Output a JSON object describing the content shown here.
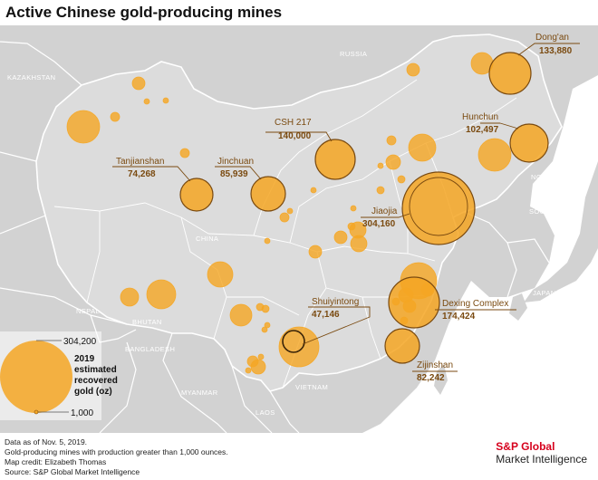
{
  "title": "Active Chinese gold-producing mines",
  "colors": {
    "water": "#ffffff",
    "land": "#d2d2d2",
    "china": "#dcdcdc",
    "bubble_fill": "#f5a623",
    "bubble_outline": "#7a4a10",
    "label": "#7a4a10",
    "country_label": "#ffffff"
  },
  "countries": [
    "RUSSIA",
    "KAZAKHSTAN",
    "CHINA",
    "NEPAL",
    "BHUTAN",
    "BANGLADESH",
    "MYANMAR",
    "LAOS",
    "VIETNAM",
    "NORTH KOREA",
    "SOUTH KOREA",
    "JAPAN"
  ],
  "labeled_mines": [
    {
      "name": "Dong'an",
      "value": "133,880"
    },
    {
      "name": "CSH 217",
      "value": "140,000"
    },
    {
      "name": "Hunchun",
      "value": "102,497"
    },
    {
      "name": "Tanjianshan",
      "value": "74,268"
    },
    {
      "name": "Jinchuan",
      "value": "85,939"
    },
    {
      "name": "Jiaojia",
      "value": "304,160"
    },
    {
      "name": "Shuiyintong",
      "value": "47,146"
    },
    {
      "name": "Dexing Complex",
      "value": "174,424"
    },
    {
      "name": "Zijinshan",
      "value": "82,242"
    }
  ],
  "legend": {
    "max": "304,200",
    "min": "1,000",
    "label_lines": [
      "2019",
      "estimated",
      "recovered",
      "gold (oz)"
    ]
  },
  "footer": {
    "lines": [
      "Data as of Nov. 5, 2019.",
      "Gold-producing mines with production greater than 1,000 ounces.",
      "Map credit: Elizabeth Thomas",
      "Source: S&P Global Market Intelligence"
    ]
  },
  "logo": {
    "line1": "S&P Global",
    "line2": "Market Intelligence"
  }
}
